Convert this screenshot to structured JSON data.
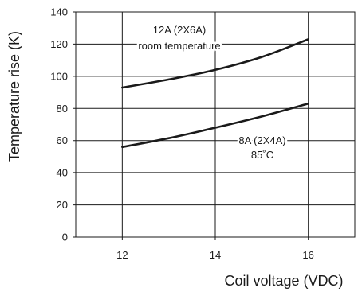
{
  "chart_data": {
    "type": "line",
    "xlabel": "Coil voltage (VDC)",
    "ylabel": "Temperature rise (K)",
    "xlim": [
      11,
      17
    ],
    "ylim": [
      0,
      140
    ],
    "xticks": [
      "12",
      "14",
      "16"
    ],
    "yticks": [
      "0",
      "20",
      "40",
      "60",
      "80",
      "100",
      "120",
      "140"
    ],
    "grid": true,
    "series": [
      {
        "name": "12A (2X6A) room temperature",
        "label_lines": [
          "12A (2X6A)",
          "room temperature"
        ],
        "x": [
          12,
          13,
          14,
          15,
          16
        ],
        "values": [
          93,
          98,
          104,
          112,
          123
        ],
        "color": "#1a1a1a"
      },
      {
        "name": "8A (2X4A) 85˚C",
        "label_lines": [
          "8A (2X4A)",
          "85˚C"
        ],
        "x": [
          12,
          13,
          14,
          15,
          16
        ],
        "values": [
          56,
          61.5,
          68,
          75,
          83
        ],
        "color": "#1a1a1a"
      }
    ]
  }
}
